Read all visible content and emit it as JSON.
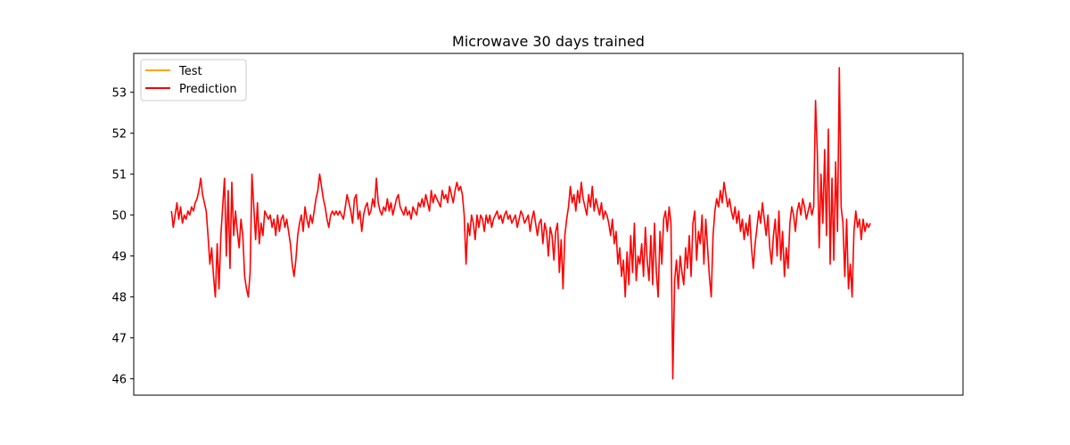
{
  "chart_data": {
    "type": "line",
    "title": "Microwave 30 days trained",
    "xlabel": "",
    "ylabel": "",
    "ylim": [
      45.6,
      53.95
    ],
    "xlim": [
      -20.6,
      432.6
    ],
    "y_ticks": [
      "46",
      "47",
      "48",
      "49",
      "50",
      "51",
      "52",
      "53"
    ],
    "x_ticks": [],
    "grid": false,
    "legend_position": "upper-left",
    "series": [
      {
        "name": "Test",
        "color": "#ffa500",
        "values": []
      },
      {
        "name": "Prediction",
        "color": "#ff0000",
        "values": [
          50.1,
          49.7,
          50.0,
          50.3,
          49.9,
          50.2,
          49.8,
          50.0,
          49.9,
          50.1,
          50.0,
          50.2,
          50.1,
          50.3,
          50.4,
          50.6,
          50.9,
          50.5,
          50.3,
          50.1,
          49.5,
          48.8,
          49.2,
          48.5,
          48.0,
          49.3,
          48.2,
          49.5,
          50.2,
          50.9,
          49.0,
          50.6,
          48.7,
          50.8,
          49.5,
          50.1,
          49.6,
          49.2,
          49.9,
          49.5,
          48.5,
          48.2,
          48.0,
          48.6,
          51.0,
          50.2,
          49.4,
          50.3,
          49.3,
          49.8,
          49.5,
          50.1,
          50.0,
          49.9,
          50.0,
          49.7,
          49.9,
          49.5,
          50.0,
          49.6,
          49.9,
          50.0,
          49.7,
          49.9,
          49.6,
          49.3,
          48.8,
          48.5,
          48.9,
          49.5,
          49.8,
          50.0,
          49.6,
          50.2,
          49.9,
          49.7,
          50.0,
          49.8,
          50.1,
          50.4,
          50.6,
          51.0,
          50.7,
          50.4,
          50.2,
          49.9,
          49.7,
          50.0,
          50.1,
          50.0,
          50.1,
          50.0,
          50.1,
          50.0,
          49.9,
          50.2,
          50.5,
          50.3,
          50.1,
          49.8,
          50.4,
          50.5,
          49.9,
          50.1,
          49.6,
          50.0,
          50.2,
          50.3,
          50.0,
          50.1,
          50.4,
          50.2,
          50.9,
          50.3,
          50.1,
          50.0,
          50.2,
          50.1,
          50.4,
          50.1,
          50.3,
          50.0,
          50.2,
          50.4,
          50.5,
          50.2,
          50.1,
          50.0,
          50.2,
          50.0,
          50.1,
          49.9,
          50.2,
          50.1,
          50.0,
          50.3,
          50.2,
          50.4,
          50.2,
          50.5,
          50.3,
          50.1,
          50.6,
          50.3,
          50.5,
          50.4,
          50.3,
          50.2,
          50.6,
          50.4,
          50.5,
          50.3,
          50.7,
          50.5,
          50.3,
          50.6,
          50.8,
          50.6,
          50.7,
          50.5,
          50.0,
          48.8,
          49.8,
          49.5,
          50.0,
          49.8,
          49.4,
          50.0,
          49.7,
          50.0,
          49.9,
          49.6,
          50.0,
          49.8,
          50.0,
          49.7,
          49.9,
          50.0,
          50.1,
          49.9,
          50.0,
          49.8,
          50.0,
          50.1,
          49.9,
          50.0,
          49.8,
          49.9,
          50.0,
          49.7,
          49.9,
          50.1,
          50.0,
          49.8,
          49.9,
          50.0,
          49.6,
          49.9,
          50.1,
          49.8,
          49.5,
          49.8,
          49.9,
          49.3,
          49.8,
          49.6,
          49.0,
          49.7,
          49.5,
          48.9,
          49.6,
          49.8,
          48.6,
          49.4,
          48.2,
          49.5,
          49.9,
          50.2,
          50.7,
          50.3,
          50.5,
          50.1,
          50.6,
          50.3,
          50.8,
          50.4,
          50.2,
          50.0,
          50.5,
          50.2,
          50.7,
          50.1,
          50.4,
          50.2,
          50.0,
          50.3,
          49.9,
          50.1,
          50.0,
          49.8,
          49.5,
          49.9,
          49.3,
          49.6,
          48.8,
          49.2,
          48.5,
          48.9,
          48.0,
          49.1,
          48.3,
          49.5,
          48.6,
          49.8,
          48.4,
          49.0,
          48.8,
          49.3,
          48.5,
          49.7,
          48.9,
          48.4,
          49.5,
          48.3,
          49.8,
          48.6,
          48.0,
          49.6,
          48.8,
          49.9,
          50.1,
          49.6,
          50.2,
          49.8,
          46.0,
          48.4,
          48.9,
          48.2,
          49.0,
          48.6,
          48.3,
          49.2,
          48.7,
          49.5,
          48.5,
          49.8,
          50.1,
          48.9,
          49.6,
          49.3,
          50.0,
          48.8,
          49.9,
          49.2,
          48.5,
          48.0,
          49.5,
          50.1,
          50.4,
          50.2,
          50.6,
          50.3,
          50.8,
          50.5,
          50.2,
          50.4,
          50.1,
          49.9,
          50.2,
          49.8,
          50.1,
          49.6,
          49.9,
          49.4,
          49.8,
          49.5,
          50.0,
          49.2,
          48.7,
          49.3,
          49.7,
          50.1,
          49.8,
          50.3,
          49.9,
          49.5,
          50.0,
          49.2,
          48.8,
          49.5,
          49.9,
          49.0,
          50.1,
          48.9,
          49.6,
          48.5,
          49.2,
          48.7,
          49.8,
          50.2,
          50.0,
          49.6,
          50.1,
          50.3,
          50.0,
          50.4,
          50.2,
          49.9,
          50.1,
          50.3,
          50.0,
          50.2,
          52.8,
          51.5,
          49.2,
          51.0,
          49.8,
          51.6,
          49.5,
          52.1,
          48.8,
          50.9,
          48.9,
          51.3,
          49.6,
          53.6,
          50.2,
          49.8,
          48.5,
          49.9,
          48.2,
          48.8,
          48.0,
          49.6,
          50.1,
          49.7,
          49.9,
          49.4,
          49.9,
          49.6,
          49.8,
          49.7,
          49.8
        ]
      }
    ]
  }
}
